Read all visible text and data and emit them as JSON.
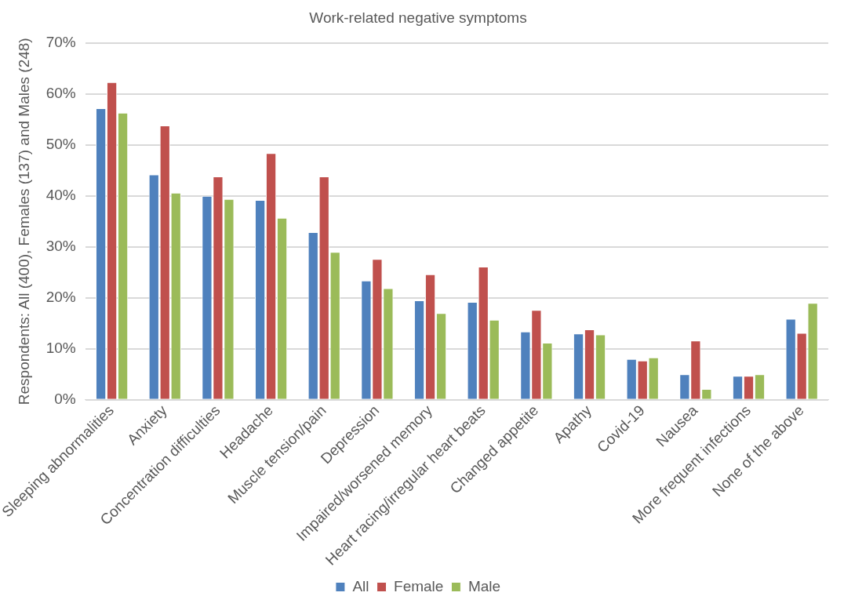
{
  "chart_data": {
    "type": "bar",
    "title": "Work-related negative symptoms",
    "ylabel": "Respondents: All (400), Females (137) and Males (248)",
    "categories": [
      "Sleeping abnormalities",
      "Anxiety",
      "Concentration difficulties",
      "Headache",
      "Muscle tension/pain",
      "Depression",
      "Impaired/worsened memory",
      "Heart racing/irregular heart beats",
      "Changed appetite",
      "Apathy",
      "Covid-19",
      "Nausea",
      "More frequent infections",
      "None of the above"
    ],
    "series": [
      {
        "name": "All",
        "color": "#4f81bd",
        "values": [
          57.2,
          44.2,
          40.0,
          39.2,
          32.9,
          23.4,
          19.5,
          19.2,
          13.4,
          13.0,
          8.0,
          5.0,
          4.7,
          15.9
        ]
      },
      {
        "name": "Female",
        "color": "#c0504d",
        "values": [
          62.3,
          53.8,
          43.8,
          48.4,
          43.8,
          27.6,
          24.6,
          26.1,
          17.6,
          13.8,
          7.7,
          11.6,
          4.7,
          13.1
        ]
      },
      {
        "name": "Male",
        "color": "#9bbb59",
        "values": [
          56.3,
          40.6,
          39.4,
          35.7,
          29.0,
          21.9,
          17.0,
          15.7,
          11.2,
          12.8,
          8.3,
          2.1,
          5.0,
          19.0
        ]
      }
    ],
    "ylim": [
      0,
      70
    ],
    "yticks": [
      {
        "value": 0,
        "label": "0%"
      },
      {
        "value": 10,
        "label": "10%"
      },
      {
        "value": 20,
        "label": "20%"
      },
      {
        "value": 30,
        "label": "30%"
      },
      {
        "value": 40,
        "label": "40%"
      },
      {
        "value": 50,
        "label": "50%"
      },
      {
        "value": 60,
        "label": "60%"
      },
      {
        "value": 70,
        "label": "70%"
      }
    ],
    "grid": "y",
    "legend": "bottom"
  }
}
